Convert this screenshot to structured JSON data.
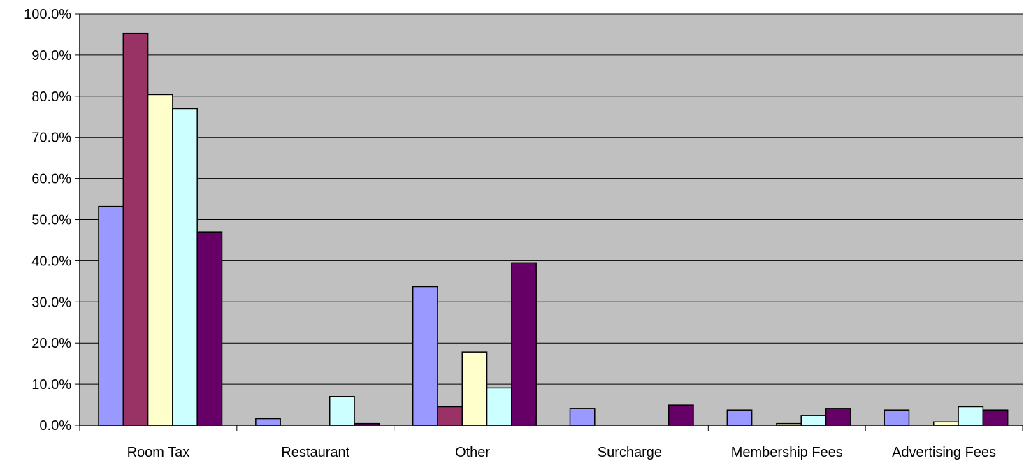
{
  "chart_data": {
    "type": "bar",
    "categories": [
      "Room Tax",
      "Restaurant",
      "Other",
      "Surcharge",
      "Membership Fees",
      "Advertising Fees"
    ],
    "series": [
      {
        "color": "#9999FF",
        "values": [
          53.2,
          1.6,
          33.7,
          4.1,
          3.7,
          3.7
        ]
      },
      {
        "color": "#993366",
        "values": [
          95.3,
          0.0,
          4.5,
          0.0,
          0.0,
          0.0
        ]
      },
      {
        "color": "#FFFFCC",
        "values": [
          80.4,
          0.0,
          17.8,
          0.0,
          0.4,
          0.8
        ]
      },
      {
        "color": "#CCFFFF",
        "values": [
          77.0,
          7.0,
          9.1,
          0.0,
          2.4,
          4.5
        ]
      },
      {
        "color": "#660066",
        "values": [
          47.0,
          0.4,
          39.5,
          4.9,
          4.1,
          3.7
        ]
      }
    ],
    "yticks": [
      "0.0%",
      "10.0%",
      "20.0%",
      "30.0%",
      "40.0%",
      "50.0%",
      "60.0%",
      "70.0%",
      "80.0%",
      "90.0%",
      "100.0%"
    ],
    "ylim": [
      0,
      100
    ],
    "title": "",
    "xlabel": "",
    "ylabel": "",
    "grid": true,
    "plot_background": "#C0C0C0"
  }
}
